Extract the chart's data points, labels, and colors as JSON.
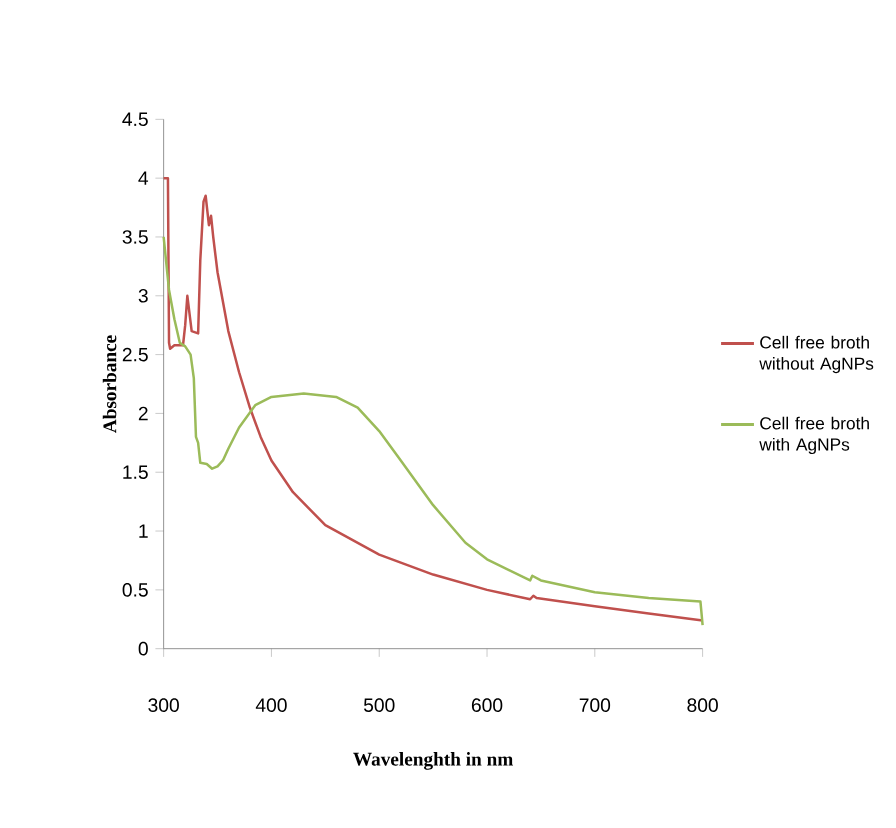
{
  "chart_data": {
    "type": "line",
    "xlabel": "Wavelenghth in nm",
    "ylabel": "Absorbance",
    "xlim": [
      300,
      800
    ],
    "ylim": [
      0,
      4.5
    ],
    "xticks": [
      300,
      400,
      500,
      600,
      700,
      800
    ],
    "yticks": [
      0,
      0.5,
      1,
      1.5,
      2,
      2.5,
      3,
      3.5,
      4,
      4.5
    ],
    "grid": false,
    "legend": "right",
    "marker": "none",
    "line_style": "solid",
    "series": [
      {
        "name": "Cell free broth without AgNPs",
        "color": "#c0504d",
        "x": [
          300,
          304,
          305,
          306,
          310,
          318,
          320,
          322,
          324,
          326,
          332,
          334,
          337,
          339,
          342,
          344,
          346,
          350,
          360,
          370,
          380,
          390,
          400,
          420,
          450,
          500,
          550,
          600,
          640,
          643,
          646,
          700,
          750,
          800
        ],
        "values": [
          4.0,
          4.0,
          2.6,
          2.55,
          2.58,
          2.58,
          2.75,
          3.0,
          2.85,
          2.7,
          2.68,
          3.3,
          3.8,
          3.85,
          3.6,
          3.68,
          3.5,
          3.2,
          2.7,
          2.35,
          2.05,
          1.8,
          1.6,
          1.33,
          1.05,
          0.8,
          0.63,
          0.5,
          0.42,
          0.45,
          0.43,
          0.36,
          0.3,
          0.24
        ]
      },
      {
        "name": "Cell free broth with AgNPs",
        "color": "#9bbb59",
        "x": [
          300,
          305,
          310,
          315,
          320,
          325,
          328,
          330,
          332,
          334,
          340,
          345,
          350,
          355,
          360,
          370,
          385,
          400,
          430,
          460,
          480,
          500,
          520,
          550,
          580,
          600,
          640,
          642,
          650,
          700,
          750,
          798,
          800
        ],
        "values": [
          3.5,
          3.05,
          2.8,
          2.6,
          2.57,
          2.5,
          2.3,
          1.8,
          1.75,
          1.58,
          1.57,
          1.53,
          1.55,
          1.6,
          1.7,
          1.88,
          2.07,
          2.14,
          2.17,
          2.14,
          2.05,
          1.85,
          1.6,
          1.22,
          0.9,
          0.76,
          0.58,
          0.62,
          0.58,
          0.48,
          0.43,
          0.4,
          0.2
        ]
      }
    ]
  }
}
